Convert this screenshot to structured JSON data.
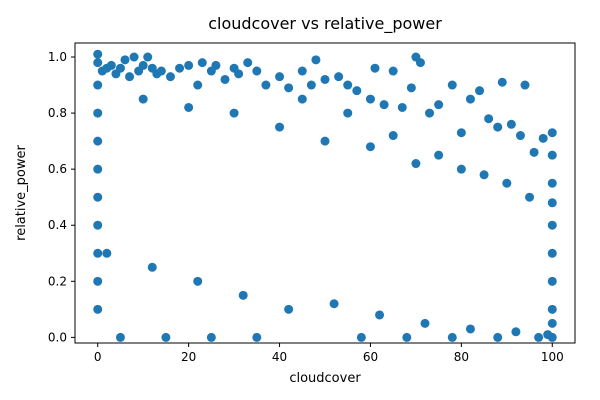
{
  "chart_data": {
    "type": "scatter",
    "title": "cloudcover vs relative_power",
    "xlabel": "cloudcover",
    "ylabel": "relative_power",
    "xlim": [
      -5,
      105
    ],
    "ylim": [
      -0.02,
      1.05
    ],
    "xticks": [
      0,
      20,
      40,
      60,
      80,
      100
    ],
    "yticks": [
      0.0,
      0.2,
      0.4,
      0.6,
      0.8,
      1.0
    ],
    "xtick_labels": [
      "0",
      "20",
      "40",
      "60",
      "80",
      "100"
    ],
    "ytick_labels": [
      "0.0",
      "0.2",
      "0.4",
      "0.6",
      "0.8",
      "1.0"
    ],
    "grid": false,
    "marker_color": "#1f77b4",
    "series": [
      {
        "x": [
          0,
          0,
          1,
          2,
          3,
          4,
          5,
          6,
          7,
          8,
          9,
          10,
          11,
          12,
          13,
          14,
          16,
          18,
          20,
          22,
          23,
          25,
          26,
          28,
          30,
          31,
          33,
          35,
          37,
          40,
          42,
          45,
          47,
          48,
          50,
          53,
          55,
          57,
          60,
          61,
          63,
          65,
          67,
          69,
          70,
          71,
          73,
          75,
          78,
          80,
          82,
          84,
          86,
          88,
          89,
          91,
          93,
          94,
          96,
          98,
          100,
          100,
          100,
          100,
          100,
          100,
          100,
          100,
          100,
          100,
          0,
          0,
          0,
          0,
          0,
          0,
          0,
          0,
          0,
          10,
          20,
          30,
          40,
          50,
          60,
          70,
          80,
          90,
          95,
          45,
          55,
          65,
          75,
          85,
          5,
          15,
          25,
          35,
          58,
          68,
          78,
          88,
          97,
          2,
          12,
          22,
          32,
          42,
          52,
          62,
          72,
          82,
          92,
          99
        ],
        "y": [
          1.01,
          0.98,
          0.95,
          0.96,
          0.97,
          0.94,
          0.96,
          0.99,
          0.93,
          1.0,
          0.95,
          0.97,
          1.0,
          0.96,
          0.94,
          0.95,
          0.93,
          0.96,
          0.97,
          0.9,
          0.98,
          0.95,
          0.97,
          0.92,
          0.96,
          0.94,
          0.98,
          0.95,
          0.9,
          0.93,
          0.89,
          0.95,
          0.9,
          0.99,
          0.92,
          0.93,
          0.9,
          0.88,
          0.85,
          0.96,
          0.83,
          0.95,
          0.82,
          0.89,
          1.0,
          0.98,
          0.8,
          0.83,
          0.9,
          0.73,
          0.85,
          0.88,
          0.78,
          0.75,
          0.91,
          0.76,
          0.72,
          0.9,
          0.66,
          0.71,
          0.73,
          0.65,
          0.55,
          0.48,
          0.4,
          0.3,
          0.2,
          0.1,
          0.05,
          0.0,
          0.9,
          0.8,
          0.7,
          0.6,
          0.5,
          0.4,
          0.3,
          0.2,
          0.1,
          0.85,
          0.82,
          0.8,
          0.75,
          0.7,
          0.68,
          0.62,
          0.6,
          0.55,
          0.5,
          0.85,
          0.8,
          0.72,
          0.65,
          0.58,
          0.0,
          0.0,
          0.0,
          0.0,
          0.0,
          0.0,
          0.0,
          0.0,
          0.0,
          0.3,
          0.25,
          0.2,
          0.15,
          0.1,
          0.12,
          0.08,
          0.05,
          0.03,
          0.02,
          0.01
        ]
      }
    ]
  }
}
